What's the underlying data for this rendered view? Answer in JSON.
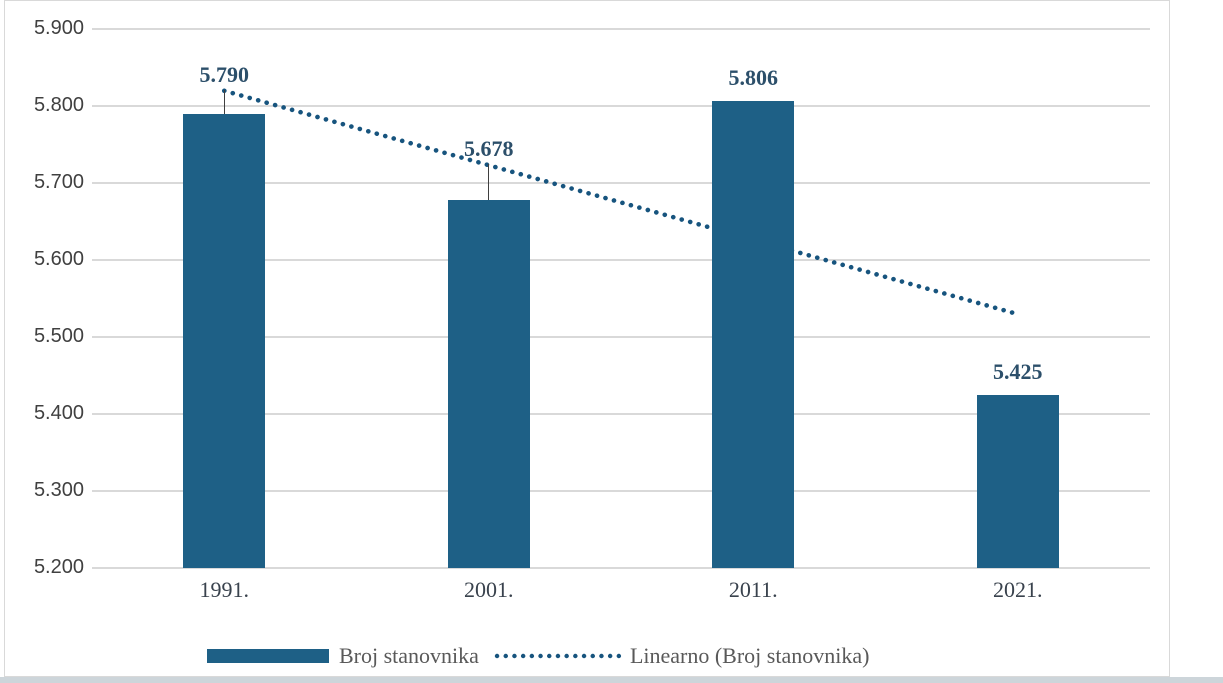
{
  "colors": {
    "bar": "#1E6086",
    "trend": "#17547E",
    "grid": "#D9D9D9",
    "axis_tick_text": "#404040",
    "category_text": "#39424D",
    "data_label_text": "#2C4F6A",
    "leader_line": "#3F3F3F",
    "legend_text": "#595959",
    "frame_border": "#D9D9D9",
    "bottom_strip": "#CDD5DA",
    "background": "#FFFFFF"
  },
  "chart_data": {
    "type": "bar",
    "title": "",
    "xlabel": "",
    "ylabel": "",
    "categories": [
      "1991.",
      "2001.",
      "2011.",
      "2021."
    ],
    "series": [
      {
        "name": "Broj stanovnika",
        "type": "bar",
        "values": [
          5790,
          5678,
          5806,
          5425
        ],
        "data_labels": [
          "5.790",
          "5.678",
          "5.806",
          "5.425"
        ],
        "data_label_leader_lines": [
          true,
          true,
          false,
          false
        ]
      },
      {
        "name": "Linearno (Broj stanovnika)",
        "type": "linear-trendline",
        "of_series": "Broj stanovnika",
        "style": "dotted",
        "endpoint_values": [
          5820,
          5530
        ]
      }
    ],
    "y_axis": {
      "min": 5200,
      "max": 5900,
      "step": 100,
      "tick_labels": [
        "5.900",
        "5.800",
        "5.700",
        "5.600",
        "5.500",
        "5.400",
        "5.300",
        "5.200"
      ]
    },
    "grid": "horizontal",
    "legend": {
      "position": "bottom",
      "entries": [
        {
          "label": "Broj stanovnika",
          "marker": "bar-swatch"
        },
        {
          "label": "Linearno (Broj stanovnika)",
          "marker": "dotted-line"
        }
      ]
    }
  }
}
